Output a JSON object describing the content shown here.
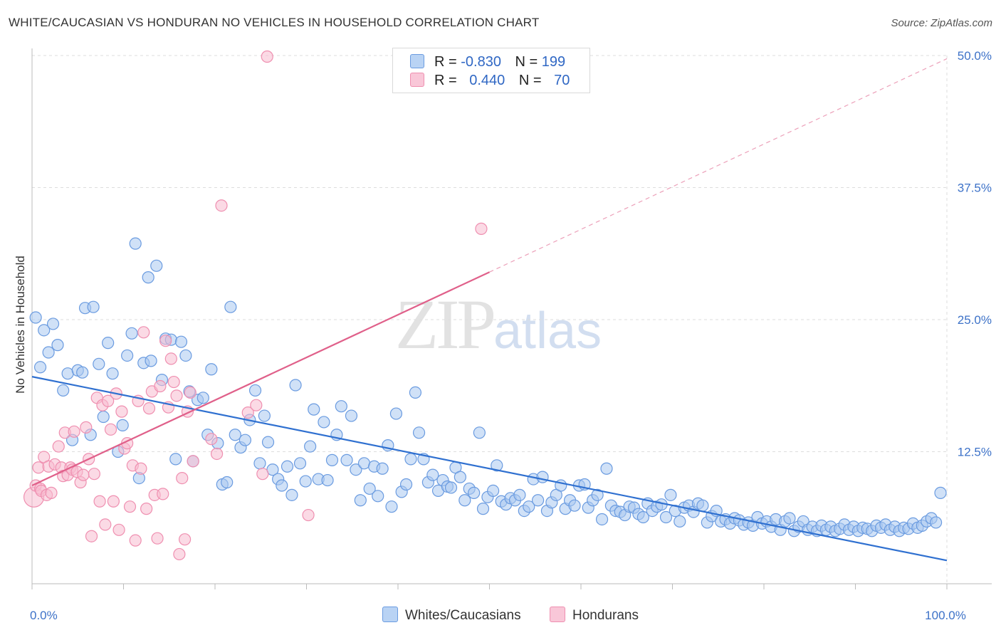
{
  "title": "WHITE/CAUCASIAN VS HONDURAN NO VEHICLES IN HOUSEHOLD CORRELATION CHART",
  "source": "Source: ZipAtlas.com",
  "watermark": {
    "zip": "ZIP",
    "atlas": "atlas"
  },
  "legend": {
    "rows": [
      {
        "r_label": "R =",
        "r_value": "-0.830",
        "n_label": "N =",
        "n_value": "199"
      },
      {
        "r_label": "R =",
        "r_value": "0.440",
        "n_label": "N =",
        "n_value": "70"
      }
    ]
  },
  "bottom_legend": {
    "whites": "Whites/Caucasians",
    "hondurans": "Hondurans"
  },
  "colors": {
    "white_fill": "#a9c8f0",
    "white_stroke": "#6a9be0",
    "white_line": "#2f70d0",
    "honduran_fill": "#f7bcd0",
    "honduran_stroke": "#ef8fb0",
    "honduran_line": "#e0608a",
    "tick": "#3d72c8",
    "grid": "#dddddd"
  },
  "chart_data": {
    "type": "scatter",
    "xlabel": "",
    "ylabel": "No Vehicles in Household",
    "xlim": [
      0,
      100
    ],
    "ylim": [
      0,
      50
    ],
    "x_tick_labels": [
      {
        "value": 0,
        "label": "0.0%"
      },
      {
        "value": 100,
        "label": "100.0%"
      }
    ],
    "y_tick_labels": [
      {
        "value": 12.5,
        "label": "12.5%"
      },
      {
        "value": 25,
        "label": "25.0%"
      },
      {
        "value": 37.5,
        "label": "37.5%"
      },
      {
        "value": 50,
        "label": "50.0%"
      }
    ],
    "grid": true,
    "series": [
      {
        "name": "Whites/Caucasians",
        "r": -0.83,
        "n": 199,
        "trend": {
          "x0": 0,
          "y0": 19.6,
          "x1": 100,
          "y1": 2.2
        },
        "points": [
          [
            0.4,
            25.2
          ],
          [
            0.9,
            20.5
          ],
          [
            1.3,
            24.0
          ],
          [
            1.8,
            21.9
          ],
          [
            2.3,
            24.6
          ],
          [
            2.8,
            22.6
          ],
          [
            3.4,
            18.3
          ],
          [
            3.9,
            19.9
          ],
          [
            4.4,
            13.6
          ],
          [
            5.0,
            20.2
          ],
          [
            5.5,
            20.0
          ],
          [
            5.8,
            26.1
          ],
          [
            6.4,
            14.1
          ],
          [
            6.7,
            26.2
          ],
          [
            7.3,
            20.8
          ],
          [
            7.8,
            15.8
          ],
          [
            8.3,
            22.8
          ],
          [
            8.8,
            19.9
          ],
          [
            9.4,
            12.5
          ],
          [
            9.9,
            15.0
          ],
          [
            10.4,
            21.6
          ],
          [
            10.9,
            23.7
          ],
          [
            11.3,
            32.2
          ],
          [
            11.7,
            10.0
          ],
          [
            12.2,
            20.9
          ],
          [
            12.7,
            29.0
          ],
          [
            13.0,
            21.1
          ],
          [
            13.6,
            30.1
          ],
          [
            14.2,
            19.3
          ],
          [
            14.6,
            23.2
          ],
          [
            15.2,
            23.1
          ],
          [
            15.7,
            11.8
          ],
          [
            16.3,
            22.9
          ],
          [
            16.8,
            21.6
          ],
          [
            17.2,
            18.2
          ],
          [
            17.6,
            11.6
          ],
          [
            18.1,
            17.4
          ],
          [
            18.7,
            17.6
          ],
          [
            19.2,
            14.1
          ],
          [
            19.6,
            20.3
          ],
          [
            20.3,
            13.3
          ],
          [
            20.8,
            9.4
          ],
          [
            21.3,
            9.6
          ],
          [
            21.7,
            26.2
          ],
          [
            22.2,
            14.1
          ],
          [
            22.8,
            12.9
          ],
          [
            23.3,
            13.6
          ],
          [
            23.8,
            15.5
          ],
          [
            24.4,
            18.3
          ],
          [
            24.9,
            11.4
          ],
          [
            25.4,
            15.9
          ],
          [
            25.8,
            13.4
          ],
          [
            26.3,
            10.8
          ],
          [
            26.9,
            9.9
          ],
          [
            27.3,
            9.3
          ],
          [
            27.9,
            11.1
          ],
          [
            28.4,
            8.4
          ],
          [
            28.8,
            18.8
          ],
          [
            29.3,
            11.4
          ],
          [
            29.9,
            9.7
          ],
          [
            30.4,
            13.0
          ],
          [
            30.8,
            16.5
          ],
          [
            31.3,
            9.9
          ],
          [
            31.9,
            15.3
          ],
          [
            32.3,
            9.8
          ],
          [
            32.8,
            11.7
          ],
          [
            33.3,
            14.1
          ],
          [
            33.8,
            16.8
          ],
          [
            34.4,
            11.7
          ],
          [
            34.9,
            15.9
          ],
          [
            35.4,
            10.8
          ],
          [
            35.9,
            7.9
          ],
          [
            36.3,
            11.4
          ],
          [
            36.9,
            9.0
          ],
          [
            37.4,
            11.1
          ],
          [
            37.8,
            8.3
          ],
          [
            38.3,
            10.9
          ],
          [
            38.9,
            13.1
          ],
          [
            39.3,
            7.3
          ],
          [
            39.8,
            16.1
          ],
          [
            40.4,
            8.7
          ],
          [
            40.9,
            9.4
          ],
          [
            41.4,
            11.8
          ],
          [
            41.9,
            18.1
          ],
          [
            42.3,
            14.3
          ],
          [
            42.8,
            11.8
          ],
          [
            43.3,
            9.6
          ],
          [
            43.8,
            10.3
          ],
          [
            44.4,
            8.8
          ],
          [
            44.9,
            9.8
          ],
          [
            45.4,
            9.2
          ],
          [
            45.8,
            9.1
          ],
          [
            46.3,
            11.0
          ],
          [
            46.8,
            10.1
          ],
          [
            47.3,
            7.9
          ],
          [
            47.8,
            9.0
          ],
          [
            48.3,
            8.6
          ],
          [
            48.9,
            14.3
          ],
          [
            49.3,
            7.1
          ],
          [
            49.8,
            8.2
          ],
          [
            50.4,
            8.8
          ],
          [
            50.8,
            11.2
          ],
          [
            51.3,
            7.8
          ],
          [
            51.8,
            7.5
          ],
          [
            52.3,
            8.1
          ],
          [
            52.8,
            7.9
          ],
          [
            53.3,
            8.4
          ],
          [
            53.8,
            6.9
          ],
          [
            54.3,
            7.3
          ],
          [
            54.8,
            9.9
          ],
          [
            55.3,
            7.9
          ],
          [
            55.8,
            10.1
          ],
          [
            56.3,
            6.9
          ],
          [
            56.8,
            7.7
          ],
          [
            57.3,
            8.4
          ],
          [
            57.8,
            9.3
          ],
          [
            58.3,
            7.1
          ],
          [
            58.8,
            7.9
          ],
          [
            59.3,
            7.4
          ],
          [
            59.8,
            9.3
          ],
          [
            60.4,
            9.4
          ],
          [
            60.8,
            7.2
          ],
          [
            61.3,
            7.9
          ],
          [
            61.8,
            8.4
          ],
          [
            62.3,
            6.1
          ],
          [
            62.8,
            10.9
          ],
          [
            63.3,
            7.4
          ],
          [
            63.8,
            6.9
          ],
          [
            64.3,
            6.8
          ],
          [
            64.8,
            6.5
          ],
          [
            65.3,
            7.3
          ],
          [
            65.8,
            7.2
          ],
          [
            66.3,
            6.6
          ],
          [
            66.8,
            6.3
          ],
          [
            67.3,
            7.6
          ],
          [
            67.8,
            6.9
          ],
          [
            68.3,
            7.3
          ],
          [
            68.8,
            7.5
          ],
          [
            69.3,
            6.3
          ],
          [
            69.8,
            8.4
          ],
          [
            70.3,
            6.9
          ],
          [
            70.8,
            5.9
          ],
          [
            71.3,
            7.2
          ],
          [
            71.8,
            7.4
          ],
          [
            72.3,
            6.8
          ],
          [
            72.8,
            7.6
          ],
          [
            73.3,
            7.4
          ],
          [
            73.8,
            5.8
          ],
          [
            74.3,
            6.4
          ],
          [
            74.8,
            6.9
          ],
          [
            75.3,
            5.9
          ],
          [
            75.8,
            6.1
          ],
          [
            76.3,
            5.7
          ],
          [
            76.8,
            6.2
          ],
          [
            77.3,
            6.0
          ],
          [
            77.8,
            5.6
          ],
          [
            78.3,
            5.8
          ],
          [
            78.8,
            5.5
          ],
          [
            79.3,
            6.3
          ],
          [
            79.8,
            5.7
          ],
          [
            80.3,
            5.9
          ],
          [
            80.8,
            5.4
          ],
          [
            81.3,
            6.1
          ],
          [
            81.8,
            5.1
          ],
          [
            82.3,
            5.9
          ],
          [
            82.8,
            6.2
          ],
          [
            83.3,
            5.0
          ],
          [
            83.8,
            5.4
          ],
          [
            84.3,
            5.9
          ],
          [
            84.8,
            5.1
          ],
          [
            85.3,
            5.4
          ],
          [
            85.8,
            5.0
          ],
          [
            86.3,
            5.5
          ],
          [
            86.8,
            5.1
          ],
          [
            87.3,
            5.4
          ],
          [
            87.8,
            5.0
          ],
          [
            88.3,
            5.2
          ],
          [
            88.8,
            5.6
          ],
          [
            89.3,
            5.1
          ],
          [
            89.8,
            5.4
          ],
          [
            90.3,
            5.0
          ],
          [
            90.8,
            5.3
          ],
          [
            91.3,
            5.2
          ],
          [
            91.8,
            5.0
          ],
          [
            92.3,
            5.5
          ],
          [
            92.8,
            5.3
          ],
          [
            93.3,
            5.6
          ],
          [
            93.8,
            5.1
          ],
          [
            94.3,
            5.4
          ],
          [
            94.8,
            5.0
          ],
          [
            95.3,
            5.3
          ],
          [
            95.8,
            5.2
          ],
          [
            96.3,
            5.7
          ],
          [
            96.8,
            5.3
          ],
          [
            97.3,
            5.5
          ],
          [
            97.8,
            5.9
          ],
          [
            98.3,
            6.2
          ],
          [
            98.8,
            5.8
          ],
          [
            99.3,
            8.6
          ]
        ]
      },
      {
        "name": "Hondurans",
        "r": 0.44,
        "n": 70,
        "trend": {
          "x0": 0,
          "y0": 9.3,
          "x1": 50,
          "y1": 29.5
        },
        "trend_extension": {
          "x0": 50,
          "y0": 29.5,
          "x1": 100,
          "y1": 49.7
        },
        "points": [
          [
            0.2,
            8.2
          ],
          [
            0.4,
            9.3
          ],
          [
            0.7,
            11.0
          ],
          [
            0.9,
            9.0
          ],
          [
            1.0,
            8.8
          ],
          [
            1.3,
            12.0
          ],
          [
            1.6,
            8.4
          ],
          [
            1.8,
            11.1
          ],
          [
            2.1,
            8.6
          ],
          [
            2.5,
            11.3
          ],
          [
            2.9,
            13.0
          ],
          [
            3.2,
            11.0
          ],
          [
            3.4,
            10.2
          ],
          [
            3.6,
            14.3
          ],
          [
            3.9,
            10.3
          ],
          [
            4.2,
            11.0
          ],
          [
            4.4,
            10.8
          ],
          [
            4.6,
            14.4
          ],
          [
            4.9,
            10.6
          ],
          [
            5.3,
            9.6
          ],
          [
            5.6,
            10.3
          ],
          [
            5.9,
            14.8
          ],
          [
            6.2,
            11.8
          ],
          [
            6.5,
            4.5
          ],
          [
            6.8,
            10.4
          ],
          [
            7.1,
            17.6
          ],
          [
            7.4,
            7.8
          ],
          [
            7.7,
            16.9
          ],
          [
            8.0,
            5.6
          ],
          [
            8.3,
            17.3
          ],
          [
            8.6,
            14.6
          ],
          [
            8.9,
            7.8
          ],
          [
            9.2,
            18.0
          ],
          [
            9.5,
            5.1
          ],
          [
            9.8,
            16.3
          ],
          [
            10.1,
            12.8
          ],
          [
            10.4,
            13.3
          ],
          [
            10.7,
            7.3
          ],
          [
            11.0,
            11.2
          ],
          [
            11.3,
            4.1
          ],
          [
            11.6,
            17.3
          ],
          [
            11.9,
            10.9
          ],
          [
            12.2,
            23.8
          ],
          [
            12.5,
            7.1
          ],
          [
            12.8,
            16.6
          ],
          [
            13.1,
            18.2
          ],
          [
            13.4,
            8.4
          ],
          [
            13.7,
            4.3
          ],
          [
            14.0,
            18.7
          ],
          [
            14.3,
            8.5
          ],
          [
            14.6,
            23.0
          ],
          [
            14.9,
            16.7
          ],
          [
            15.2,
            21.3
          ],
          [
            15.5,
            19.1
          ],
          [
            15.8,
            17.8
          ],
          [
            16.1,
            2.8
          ],
          [
            16.4,
            10.0
          ],
          [
            16.7,
            4.2
          ],
          [
            17.0,
            16.3
          ],
          [
            17.3,
            18.1
          ],
          [
            17.6,
            11.6
          ],
          [
            20.7,
            35.8
          ],
          [
            20.2,
            12.3
          ],
          [
            19.6,
            13.7
          ],
          [
            23.6,
            16.2
          ],
          [
            24.5,
            16.9
          ],
          [
            25.2,
            10.4
          ],
          [
            25.7,
            49.9
          ],
          [
            30.2,
            6.5
          ],
          [
            49.1,
            33.6
          ]
        ]
      }
    ]
  }
}
